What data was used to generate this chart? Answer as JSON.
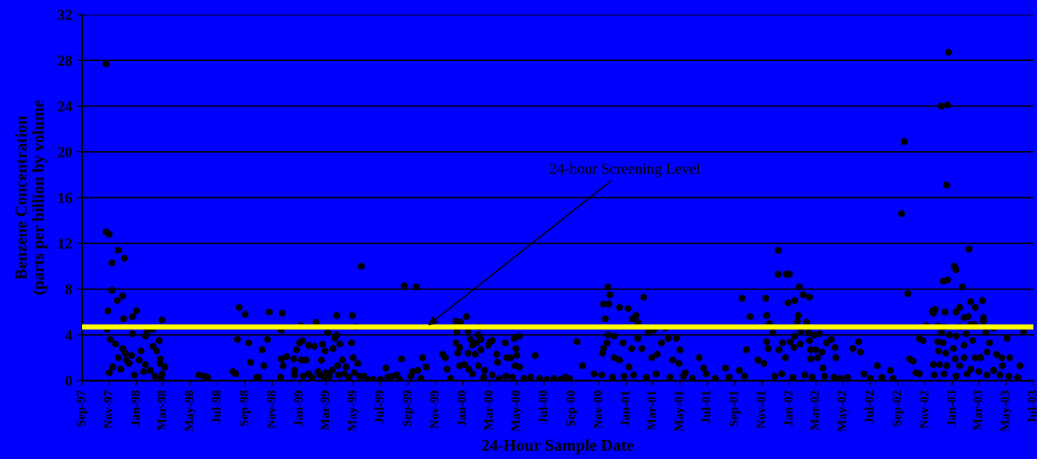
{
  "chart_data": {
    "type": "scatter",
    "xlabel": "24-Hour Sample Date",
    "ylabel": "Benzene Concentration\n(parts per billion by volume",
    "xlim": [
      "1997-09-01",
      "2003-07-01"
    ],
    "xticks": [
      {
        "value": "1997-09-01",
        "label": "Sep-97"
      },
      {
        "value": "1997-11-01",
        "label": "Nov-97"
      },
      {
        "value": "1998-01-01",
        "label": "Jan-98"
      },
      {
        "value": "1998-03-01",
        "label": "Mar-98"
      },
      {
        "value": "1998-05-01",
        "label": "May-98"
      },
      {
        "value": "1998-07-01",
        "label": "Jul-98"
      },
      {
        "value": "1998-09-01",
        "label": "Sep-98"
      },
      {
        "value": "1998-11-01",
        "label": "Nov-98"
      },
      {
        "value": "1999-01-01",
        "label": "Jan-99"
      },
      {
        "value": "1999-03-01",
        "label": "Mar-99"
      },
      {
        "value": "1999-05-01",
        "label": "May-99"
      },
      {
        "value": "1999-07-01",
        "label": "Jul-99"
      },
      {
        "value": "1999-09-01",
        "label": "Sep-99"
      },
      {
        "value": "1999-11-01",
        "label": "Nov-99"
      },
      {
        "value": "2000-01-01",
        "label": "Jan-00"
      },
      {
        "value": "2000-03-01",
        "label": "Mar-00"
      },
      {
        "value": "2000-05-01",
        "label": "May-00"
      },
      {
        "value": "2000-07-01",
        "label": "Jul-00"
      },
      {
        "value": "2000-09-01",
        "label": "Sep-00"
      },
      {
        "value": "2000-11-01",
        "label": "Nov-00"
      },
      {
        "value": "2001-01-01",
        "label": "Jan-01"
      },
      {
        "value": "2001-03-01",
        "label": "Mar-01"
      },
      {
        "value": "2001-05-01",
        "label": "May-01"
      },
      {
        "value": "2001-07-01",
        "label": "Jul-01"
      },
      {
        "value": "2001-09-01",
        "label": "Sep-01"
      },
      {
        "value": "2001-11-01",
        "label": "Nov-01"
      },
      {
        "value": "2002-01-01",
        "label": "Jan-02"
      },
      {
        "value": "2002-03-01",
        "label": "Mar-02"
      },
      {
        "value": "2002-05-01",
        "label": "May-02"
      },
      {
        "value": "2002-07-01",
        "label": "Jul-02"
      },
      {
        "value": "2002-09-01",
        "label": "Sep-02"
      },
      {
        "value": "2002-11-01",
        "label": "Nov-02"
      },
      {
        "value": "2003-01-01",
        "label": "Jan-03"
      },
      {
        "value": "2003-03-01",
        "label": "Mar-03"
      },
      {
        "value": "2003-05-01",
        "label": "May-03"
      },
      {
        "value": "2003-07-01",
        "label": "Jul-03"
      }
    ],
    "ylim": [
      0,
      32
    ],
    "yticks": [
      0,
      4,
      8,
      12,
      16,
      20,
      24,
      28,
      32
    ],
    "grid": "y",
    "marker": "circle",
    "ref_lines": [
      {
        "axis": "y",
        "value": 4.7,
        "color": "#ffff00"
      }
    ],
    "annotations": [
      {
        "text": "24-hour Screening Level",
        "x": "1999-10-11",
        "y": 4.7
      }
    ],
    "series": [
      {
        "color": "#000000",
        "x": [
          "1997-10-25",
          "1997-10-25",
          "1997-11-01",
          "1997-11-07",
          "1997-11-21",
          "1997-12-05",
          "1997-11-07",
          "1997-12-01",
          "1997-11-19",
          "1997-10-29",
          "1997-12-03",
          "1998-01-01",
          "1997-12-23",
          "1997-12-23",
          "1997-10-27",
          "1997-11-03",
          "1997-11-15",
          "1997-12-01",
          "1997-12-07",
          "1997-11-21",
          "1997-12-09",
          "1997-11-09",
          "1997-11-01",
          "1997-11-27",
          "1997-12-15",
          "1997-12-27",
          "1997-12-21",
          "1998-01-07",
          "1998-01-21",
          "1998-02-01",
          "1998-02-11",
          "1998-02-07",
          "1998-02-15",
          "1998-02-23",
          "1998-02-27",
          "1998-02-27",
          "1998-02-07",
          "1998-01-25",
          "1998-02-21",
          "1998-02-23",
          "1998-01-17",
          "1998-01-11",
          "1998-01-21",
          "1998-03-05",
          "1998-02-25",
          "1998-05-21",
          "1998-06-01",
          "1998-06-09",
          "1998-08-19",
          "1998-09-01",
          "1998-08-15",
          "1998-09-09",
          "1998-09-13",
          "1998-09-27",
          "1998-10-01",
          "1998-10-09",
          "1998-10-13",
          "1998-10-21",
          "1998-10-25",
          "1998-08-05",
          "1998-08-11",
          "1998-11-19",
          "1998-11-21",
          "1998-11-23",
          "1998-11-21",
          "1998-11-25",
          "1998-12-03",
          "1998-12-19",
          "1998-12-21",
          "1998-12-21",
          "1999-01-03",
          "1999-01-01",
          "1999-01-07",
          "1998-12-25",
          "1999-01-05",
          "1999-01-15",
          "1999-01-21",
          "1999-02-03",
          "1999-02-07",
          "1999-02-21",
          "1999-02-19",
          "1999-02-27",
          "1999-03-05",
          "1999-03-17",
          "1999-03-21",
          "1999-03-25",
          "1999-03-25",
          "1999-04-01",
          "1999-03-27",
          "1999-04-07",
          "1999-04-15",
          "1999-04-27",
          "1999-04-29",
          "1999-05-01",
          "1999-05-07",
          "1999-05-11",
          "1999-05-19",
          "1999-01-09",
          "1999-01-21",
          "1999-01-29",
          "1999-02-11",
          "1999-02-15",
          "1999-02-25",
          "1999-03-01",
          "1999-03-09",
          "1999-03-15",
          "1999-03-29",
          "1999-04-11",
          "1999-04-21",
          "1999-05-03",
          "1999-05-15",
          "1999-05-25",
          "1999-06-03",
          "1999-06-15",
          "1999-07-01",
          "1999-07-13",
          "1999-07-17",
          "1999-07-27",
          "1999-08-07",
          "1999-08-13",
          "1999-08-17",
          "1999-08-23",
          "1999-09-19",
          "1999-09-07",
          "1999-09-11",
          "1999-09-23",
          "1999-09-29",
          "1999-10-03",
          "1999-10-11",
          "1999-11-17",
          "1999-11-23",
          "1999-11-27",
          "1999-12-05",
          "1999-12-17",
          "1999-12-27",
          "2000-01-09",
          "1999-12-19",
          "2000-01-13",
          "1999-12-17",
          "1999-12-25",
          "1999-12-21",
          "2000-01-19",
          "2000-01-23",
          "2000-02-01",
          "2000-02-07",
          "2000-02-05",
          "2000-02-11",
          "2000-02-11",
          "2000-01-29",
          "2000-01-13",
          "1999-12-25",
          "2000-01-05",
          "2000-01-15",
          "2000-01-23",
          "2000-02-05",
          "2000-02-19",
          "2000-02-27",
          "2000-03-03",
          "2000-03-07",
          "2000-03-17",
          "2000-03-19",
          "2000-04-05",
          "2000-04-09",
          "2000-04-17",
          "2000-04-25",
          "2000-04-29",
          "2000-05-01",
          "2000-05-07",
          "2000-04-27",
          "2000-05-07",
          "2000-06-11",
          "2000-02-17",
          "2000-03-07",
          "2000-03-23",
          "2000-04-07",
          "2000-04-21",
          "2000-05-17",
          "2000-06-01",
          "2000-06-21",
          "2000-07-07",
          "2000-07-23",
          "2000-08-07",
          "2000-08-17",
          "2000-08-27",
          "2000-09-13",
          "2000-09-25",
          "2000-10-21",
          "2000-11-21",
          "2000-11-25",
          "2000-11-11",
          "2000-11-23",
          "2000-11-15",
          "2000-11-21",
          "2000-11-19",
          "2000-11-11",
          "2000-11-09",
          "2000-12-05",
          "2000-12-17",
          "2001-01-05",
          "2001-01-15",
          "2001-01-23",
          "2001-01-27",
          "2001-02-09",
          "2001-01-27",
          "2001-01-13",
          "2000-12-25",
          "2000-12-05",
          "2000-12-17",
          "2001-01-07",
          "2001-02-05",
          "2001-02-19",
          "2001-03-03",
          "2001-03-29",
          "2001-04-05",
          "2001-03-21",
          "2001-03-11",
          "2001-02-27",
          "2001-04-23",
          "2001-05-01",
          "2001-04-29",
          "2001-04-15",
          "2001-05-13",
          "2001-06-13",
          "2001-06-23",
          "2001-06-29",
          "2001-08-11",
          "2001-09-11",
          "2001-09-23",
          "2001-09-17",
          "2001-10-05",
          "2001-09-27",
          "2001-10-23",
          "2001-11-05",
          "2000-11-07",
          "2000-12-01",
          "2000-12-27",
          "2001-01-17",
          "2001-02-15",
          "2001-03-09",
          "2001-04-09",
          "2001-05-09",
          "2001-05-29",
          "2001-07-19",
          "2001-08-19",
          "2001-11-09",
          "2001-11-11",
          "2001-11-17",
          "2001-11-11",
          "2001-11-15",
          "2001-11-25",
          "2001-12-07",
          "2001-12-07",
          "2001-12-25",
          "2002-01-01",
          "2001-12-29",
          "2002-01-13",
          "2002-01-23",
          "2002-02-01",
          "2002-02-15",
          "2002-01-21",
          "2002-01-19",
          "2002-01-27",
          "2002-02-09",
          "2002-02-13",
          "2002-02-25",
          "2002-03-09",
          "2002-01-13",
          "2002-01-03",
          "2001-12-17",
          "2001-12-09",
          "2001-12-23",
          "2002-01-11",
          "2002-01-25",
          "2002-02-15",
          "2002-02-17",
          "2002-03-01",
          "2002-03-15",
          "2002-03-25",
          "2002-04-05",
          "2002-04-13",
          "2002-04-15",
          "2002-03-05",
          "2002-02-18",
          "2002-03-17",
          "2002-05-23",
          "2002-06-05",
          "2002-06-09",
          "2002-06-17",
          "2002-07-17",
          "2002-08-15",
          "2001-11-29",
          "2001-12-15",
          "2002-01-09",
          "2002-02-05",
          "2002-02-21",
          "2002-03-21",
          "2002-04-11",
          "2002-04-25",
          "2002-05-11",
          "2002-07-01",
          "2002-07-27",
          "2002-08-21",
          "2002-09-09",
          "2002-09-15",
          "2002-09-23",
          "2002-09-27",
          "2002-10-05",
          "2002-10-11",
          "2002-10-19",
          "2002-10-19",
          "2002-10-27",
          "2002-11-03",
          "2002-11-17",
          "2002-11-23",
          "2002-11-19",
          "2002-12-07",
          "2002-12-21",
          "2002-12-23",
          "2002-12-19",
          "2002-12-11",
          "2002-12-21",
          "2003-01-05",
          "2003-01-09",
          "2003-02-07",
          "2003-01-23",
          "2002-12-15",
          "2003-01-09",
          "2003-01-17",
          "2003-02-11",
          "2003-02-21",
          "2003-03-09",
          "2003-01-27",
          "2003-02-05",
          "2003-03-11",
          "2003-03-11",
          "2003-02-11",
          "2003-02-19",
          "2002-11-29",
          "2002-12-13",
          "2003-01-17",
          "2002-12-07",
          "2002-12-25",
          "2003-01-09",
          "2003-02-01",
          "2003-03-17",
          "2003-04-03",
          "2003-05-03",
          "2003-06-09",
          "2002-11-29",
          "2002-12-11",
          "2003-01-03",
          "2003-01-27",
          "2003-02-15",
          "2003-03-25",
          "2002-12-01",
          "2002-12-17",
          "2003-01-07",
          "2003-01-27",
          "2003-02-21",
          "2003-03-05",
          "2003-03-19",
          "2003-04-09",
          "2003-04-21",
          "2003-05-09",
          "2002-11-19",
          "2002-12-03",
          "2002-12-19",
          "2003-01-17",
          "2003-02-11",
          "2003-03-01",
          "2003-04-03",
          "2003-04-23",
          "2003-06-01",
          "2002-11-21",
          "2002-12-13",
          "2003-01-09",
          "2003-02-03",
          "2003-03-19",
          "2003-04-17",
          "2003-05-07",
          "2003-05-27"
        ],
        "values": [
          27.7,
          13.0,
          12.8,
          10.3,
          11.4,
          10.7,
          7.9,
          7.4,
          7.0,
          6.1,
          5.4,
          6.1,
          5.6,
          4.1,
          4.5,
          3.6,
          3.2,
          2.8,
          2.4,
          2.0,
          1.8,
          1.2,
          0.7,
          1.0,
          1.5,
          0.5,
          2.2,
          1.8,
          1.4,
          0.9,
          0.4,
          3.0,
          2.6,
          1.5,
          0.6,
          5.3,
          4.5,
          4.3,
          3.5,
          1.9,
          0.8,
          2.6,
          3.9,
          1.2,
          0.2,
          0.5,
          0.4,
          0.3,
          6.4,
          5.8,
          3.6,
          3.3,
          1.6,
          0.3,
          0.3,
          2.7,
          1.3,
          3.6,
          6.0,
          0.8,
          0.6,
          0.3,
          4.4,
          5.9,
          1.9,
          1.3,
          2.1,
          1.9,
          0.9,
          0.5,
          4.8,
          3.3,
          3.5,
          2.7,
          1.8,
          1.8,
          3.1,
          3.0,
          5.1,
          3.2,
          1.8,
          2.6,
          4.2,
          2.8,
          3.7,
          4.0,
          5.7,
          3.2,
          1.3,
          1.8,
          1.2,
          3.3,
          5.7,
          2.0,
          4.7,
          1.5,
          10.0,
          0.4,
          0.6,
          0.3,
          0.8,
          0.5,
          0.3,
          0.7,
          0.4,
          0.9,
          0.5,
          0.6,
          0.3,
          0.7,
          0.4,
          0.4,
          0.1,
          0.1,
          0.1,
          1.1,
          0.3,
          0.4,
          0.5,
          0.1,
          1.9,
          8.3,
          8.2,
          0.4,
          0.8,
          0.9,
          0.2,
          2.0,
          1.2,
          2.3,
          2.0,
          1.0,
          0.2,
          5.2,
          5.1,
          5.6,
          4.3,
          4.3,
          3.3,
          2.9,
          2.4,
          3.6,
          3.1,
          3.3,
          4.7,
          4.0,
          3.6,
          2.7,
          2.3,
          2.4,
          1.3,
          1.4,
          1.0,
          0.6,
          1.3,
          0.9,
          3.1,
          3.4,
          3.5,
          2.3,
          1.6,
          3.3,
          2.0,
          2.0,
          3.7,
          2.8,
          2.2,
          3.9,
          1.3,
          1.2,
          2.2,
          0.3,
          0.5,
          0.2,
          0.4,
          0.3,
          0.2,
          0.3,
          0.2,
          0.1,
          0.2,
          0.1,
          0.3,
          0.2,
          3.4,
          1.3,
          0.6,
          8.2,
          7.5,
          6.7,
          6.7,
          5.4,
          4.0,
          3.3,
          2.8,
          2.4,
          3.9,
          6.4,
          6.3,
          5.4,
          5.7,
          5.1,
          7.3,
          3.7,
          2.8,
          3.3,
          2.0,
          1.8,
          1.2,
          2.8,
          4.2,
          4.4,
          4.6,
          3.7,
          3.3,
          2.3,
          2.0,
          3.7,
          2.7,
          1.5,
          1.8,
          0.7,
          2.0,
          1.1,
          0.6,
          1.1,
          0.9,
          0.4,
          7.2,
          5.6,
          2.7,
          1.8,
          1.5,
          0.5,
          0.3,
          0.4,
          0.5,
          0.3,
          0.6,
          0.3,
          0.4,
          0.2,
          0.2,
          0.3,
          7.2,
          5.7,
          5.0,
          3.4,
          2.8,
          4.2,
          11.4,
          9.3,
          9.3,
          9.3,
          6.8,
          7.0,
          8.2,
          7.5,
          7.3,
          5.7,
          5.2,
          4.3,
          5.1,
          4.2,
          4.0,
          4.1,
          3.9,
          3.4,
          3.3,
          2.7,
          2.0,
          2.9,
          3.2,
          3.5,
          2.7,
          2.7,
          2.5,
          3.3,
          3.6,
          2.9,
          2.0,
          2.0,
          1.9,
          1.1,
          2.8,
          3.4,
          2.5,
          0.6,
          1.3,
          0.9,
          0.4,
          0.6,
          0.3,
          0.5,
          0.3,
          0.4,
          0.3,
          0.2,
          0.3,
          0.2,
          0.3,
          0.2,
          14.6,
          20.9,
          7.6,
          1.9,
          1.7,
          0.7,
          0.6,
          3.7,
          3.5,
          4.8,
          6.1,
          6.2,
          5.9,
          24.0,
          24.1,
          28.7,
          17.1,
          8.7,
          8.8,
          10.0,
          9.7,
          11.5,
          8.2,
          6.0,
          6.0,
          6.4,
          6.9,
          6.4,
          7.0,
          5.5,
          5.6,
          5.5,
          5.2,
          4.9,
          4.9,
          4.8,
          4.7,
          4.7,
          4.2,
          4.0,
          3.9,
          4.1,
          4.2,
          4.6,
          3.7,
          4.3,
          3.4,
          3.3,
          2.8,
          3.1,
          3.5,
          3.3,
          2.6,
          2.4,
          1.9,
          2.0,
          2.0,
          2.0,
          2.5,
          2.3,
          2.0,
          2.0,
          1.4,
          1.4,
          1.3,
          1.3,
          1.0,
          0.8,
          0.9,
          1.3,
          1.3,
          0.5,
          0.6,
          0.4,
          0.6,
          0.5,
          0.5,
          0.4,
          0.3
        ]
      }
    ]
  }
}
